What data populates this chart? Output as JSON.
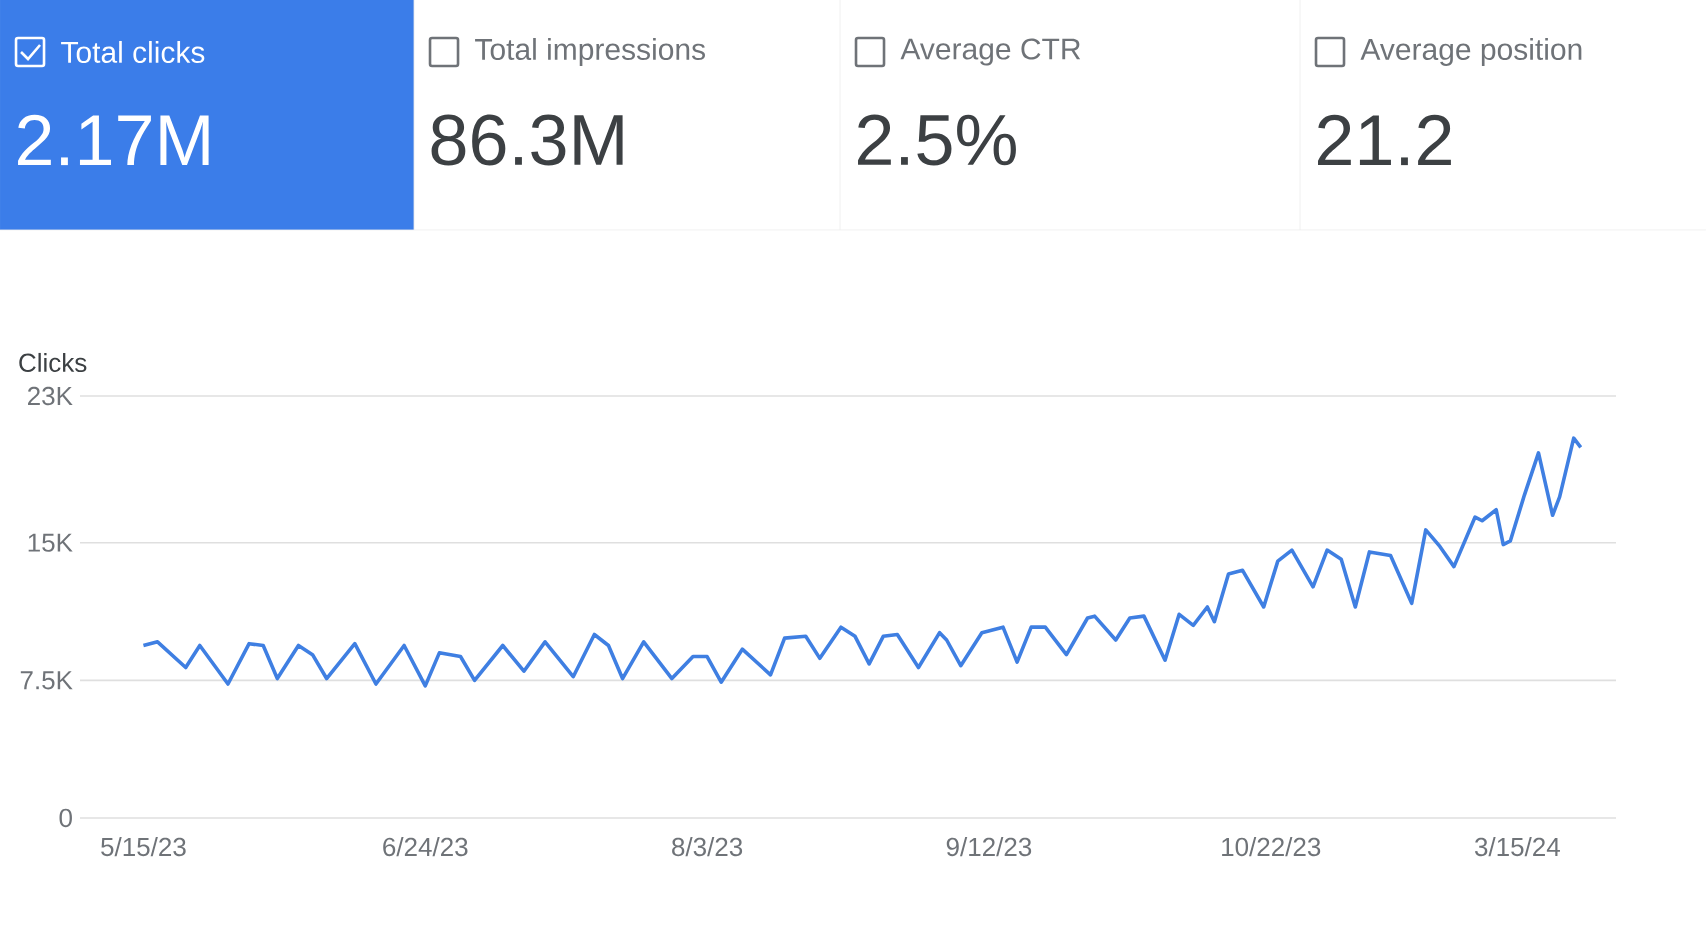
{
  "chart_data": [
    {
      "type": "other",
      "annotations": [
        "Total clicks",
        "2.17M",
        "Total impressions",
        "86.3M",
        "Average CTR",
        "2.5%",
        "Average position",
        "21.2"
      ]
    },
    {
      "type": "line",
      "ylabel": "Clicks",
      "color": "#3f7fe2",
      "grid": "y",
      "x": [
        "2023-05-15",
        "2023-05-17",
        "2023-05-21",
        "2023-05-23",
        "2023-05-27",
        "2023-05-30",
        "2023-06-01",
        "2023-06-03",
        "2023-06-06",
        "2023-06-08",
        "2023-06-10",
        "2023-06-14",
        "2023-06-17",
        "2023-06-21",
        "2023-06-24",
        "2023-06-26",
        "2023-06-29",
        "2023-07-01",
        "2023-07-05",
        "2023-07-08",
        "2023-07-11",
        "2023-07-15",
        "2023-07-18",
        "2023-07-20",
        "2023-07-22",
        "2023-07-25",
        "2023-07-29",
        "2023-08-01",
        "2023-08-03",
        "2023-08-05",
        "2023-08-08",
        "2023-08-12",
        "2023-08-14",
        "2023-08-17",
        "2023-08-19",
        "2023-08-22",
        "2023-08-24",
        "2023-08-26",
        "2023-08-28",
        "2023-08-30",
        "2023-09-02",
        "2023-09-05",
        "2023-09-06",
        "2023-09-08",
        "2023-09-11",
        "2023-09-14",
        "2023-09-16",
        "2023-09-18",
        "2023-09-20",
        "2023-09-23",
        "2023-09-26",
        "2023-09-27",
        "2023-09-30",
        "2023-10-02",
        "2023-10-04",
        "2023-10-07",
        "2023-10-09",
        "2023-10-11",
        "2023-10-13",
        "2023-10-14",
        "2023-10-16",
        "2023-10-18",
        "2023-10-21",
        "2023-10-23",
        "2023-10-25",
        "2023-10-28",
        "2023-10-30",
        "2023-11-01",
        "2023-11-03",
        "2023-11-05",
        "2023-11-08",
        "2023-11-11",
        "2023-11-13",
        "2023-11-15",
        "2023-11-17",
        "2023-11-20",
        "2023-11-21",
        "2023-11-23",
        "2023-11-24",
        "2023-11-25",
        "2023-11-27",
        "2023-11-29",
        "2023-12-01",
        "2023-12-02",
        "2023-12-04",
        "2023-12-05"
      ],
      "values": [
        9400,
        9600,
        8200,
        9400,
        7300,
        9500,
        9400,
        7600,
        9400,
        8900,
        7600,
        9500,
        7300,
        9400,
        7200,
        9000,
        8800,
        7500,
        9400,
        8000,
        9600,
        7700,
        10000,
        9400,
        7600,
        9600,
        7600,
        8800,
        8800,
        7400,
        9200,
        7800,
        9800,
        9900,
        8700,
        10400,
        9900,
        8400,
        9900,
        10000,
        8200,
        10100,
        9700,
        8300,
        10100,
        10400,
        8500,
        10400,
        10400,
        8900,
        10900,
        11000,
        9700,
        10900,
        11000,
        8600,
        11100,
        10500,
        11500,
        10700,
        13300,
        13500,
        11500,
        14000,
        14600,
        12600,
        14600,
        14100,
        11500,
        14500,
        14300,
        11700,
        15700,
        14800,
        13700,
        16400,
        16200,
        16800,
        14900,
        15100,
        17600,
        19900,
        16500,
        17500,
        20700,
        20200
      ],
      "xlim": [
        "2023-05-06",
        "2023-12-10"
      ],
      "xticks": [
        {
          "value": "2023-05-15",
          "label": "5/15/23"
        },
        {
          "value": "2023-06-24",
          "label": "6/24/23"
        },
        {
          "value": "2023-08-03",
          "label": "8/3/23"
        },
        {
          "value": "2023-09-12",
          "label": "9/12/23"
        },
        {
          "value": "2023-10-22",
          "label": "10/22/23"
        },
        {
          "value": "2023-11-26",
          "label": "3/15/24"
        }
      ],
      "ylim": [
        0,
        23000
      ],
      "yticks": [
        0,
        {
          "value": 7500,
          "label": "7.5K"
        },
        {
          "value": 15000,
          "label": "15K"
        },
        {
          "value": 23000,
          "label": "23K"
        }
      ]
    }
  ]
}
